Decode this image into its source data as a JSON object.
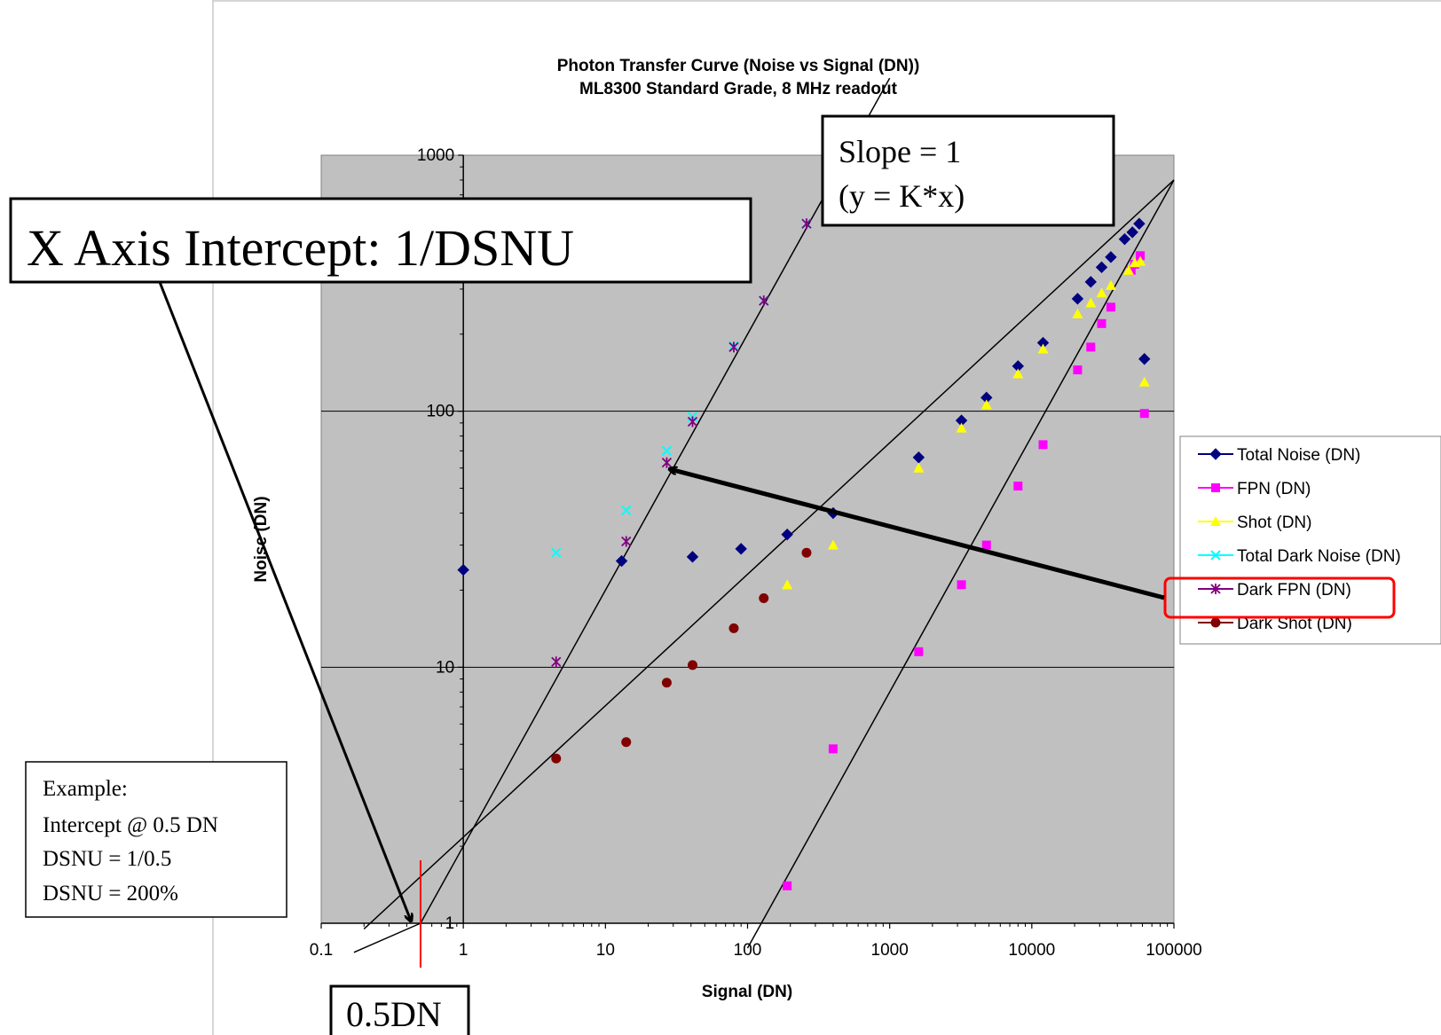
{
  "chart_data": {
    "type": "scatter",
    "title": "Photon Transfer Curve (Noise vs Signal (DN))",
    "subtitle": "ML8300 Standard Grade, 8 MHz readout",
    "xlabel": "Signal (DN)",
    "ylabel": "Noise (DN)",
    "xscale": "log",
    "yscale": "log",
    "xlim": [
      0.1,
      100000
    ],
    "ylim": [
      1,
      1000
    ],
    "x_ticks": [
      "0.1",
      "1",
      "10",
      "100",
      "1000",
      "10000",
      "100000"
    ],
    "y_ticks": [
      "1",
      "10",
      "100",
      "1000"
    ],
    "grid": "horizontal major",
    "legend_position": "right",
    "colors": {
      "plot_background": "#c0c0c0",
      "total_noise": "#000080",
      "fpn": "#ff00ff",
      "shot": "#ffff00",
      "total_dark_noise": "#00ffff",
      "dark_fpn": "#800080",
      "dark_shot": "#800000",
      "legend_highlight": "#ff0000"
    },
    "series": [
      {
        "name": "Total Noise (DN)",
        "marker": "diamond",
        "color": "#000080",
        "points": [
          [
            1,
            24
          ],
          [
            13,
            26
          ],
          [
            41,
            27
          ],
          [
            90,
            29
          ],
          [
            190,
            33
          ],
          [
            400,
            40
          ],
          [
            1600,
            66
          ],
          [
            3200,
            92
          ],
          [
            4800,
            113
          ],
          [
            8000,
            150
          ],
          [
            12000,
            185
          ],
          [
            21000,
            275
          ],
          [
            26000,
            320
          ],
          [
            31000,
            365
          ],
          [
            36000,
            400
          ],
          [
            45000,
            470
          ],
          [
            51000,
            500
          ],
          [
            57000,
            540
          ],
          [
            62000,
            160
          ]
        ]
      },
      {
        "name": "FPN (DN)",
        "marker": "square",
        "color": "#ff00ff",
        "points": [
          [
            190,
            1.4
          ],
          [
            400,
            4.8
          ],
          [
            1600,
            11.5
          ],
          [
            3200,
            21
          ],
          [
            4800,
            30
          ],
          [
            8000,
            51
          ],
          [
            12000,
            74
          ],
          [
            21000,
            145
          ],
          [
            26000,
            178
          ],
          [
            31000,
            220
          ],
          [
            36000,
            255
          ],
          [
            50000,
            355
          ],
          [
            53000,
            375
          ],
          [
            58000,
            405
          ],
          [
            62000,
            98
          ]
        ]
      },
      {
        "name": "Shot (DN)",
        "marker": "triangle",
        "color": "#ffff00",
        "points": [
          [
            190,
            21
          ],
          [
            400,
            30
          ],
          [
            1600,
            60
          ],
          [
            3200,
            86
          ],
          [
            4800,
            106
          ],
          [
            8000,
            140
          ],
          [
            12000,
            175
          ],
          [
            21000,
            240
          ],
          [
            26000,
            265
          ],
          [
            31000,
            290
          ],
          [
            36000,
            310
          ],
          [
            48000,
            355
          ],
          [
            53000,
            380
          ],
          [
            58000,
            385
          ],
          [
            62000,
            130
          ]
        ]
      },
      {
        "name": "Total Dark Noise (DN)",
        "marker": "x",
        "color": "#00ffff",
        "points": [
          [
            4.5,
            28
          ],
          [
            14,
            41
          ],
          [
            27,
            70
          ],
          [
            41,
            95
          ],
          [
            80,
            180
          ],
          [
            130,
            270
          ],
          [
            260,
            540
          ]
        ]
      },
      {
        "name": "Dark FPN (DN)",
        "marker": "star",
        "color": "#800080",
        "points": [
          [
            4.5,
            10.5
          ],
          [
            14,
            31
          ],
          [
            27,
            63
          ],
          [
            41,
            91
          ],
          [
            80,
            178
          ],
          [
            130,
            270
          ],
          [
            260,
            540
          ]
        ]
      },
      {
        "name": "Dark Shot (DN)",
        "marker": "circle",
        "color": "#800000",
        "points": [
          [
            4.5,
            4.4
          ],
          [
            14,
            5.1
          ],
          [
            27,
            8.7
          ],
          [
            41,
            10.2
          ],
          [
            80,
            14.2
          ],
          [
            130,
            18.6
          ],
          [
            260,
            28
          ]
        ]
      }
    ],
    "fit_lines": [
      {
        "name": "slope-1-dark-fpn",
        "from": [
          0.5,
          1
        ],
        "to": [
          1000,
          2000
        ]
      },
      {
        "name": "dark-shot-fit",
        "from": [
          0.2,
          0.95
        ],
        "to": [
          100000,
          800
        ]
      },
      {
        "name": "fpn-fit",
        "from": [
          100,
          0.8
        ],
        "to": [
          100000,
          800
        ]
      },
      {
        "name": "extra-low-line",
        "from": [
          0.17,
          0.77
        ],
        "to": [
          0.5,
          1
        ]
      }
    ],
    "intercept_marker": {
      "x": 0.5
    }
  },
  "annotations": {
    "x_intercept_label": "X Axis Intercept: 1/DSNU",
    "slope_line1": "Slope = 1",
    "slope_line2": "(y = K*x)",
    "example_lines": [
      "Example:",
      "Intercept  @ 0.5 DN",
      "DSNU = 1/0.5",
      "DSNU = 200%"
    ],
    "intercept_value_label": "0.5DN"
  }
}
